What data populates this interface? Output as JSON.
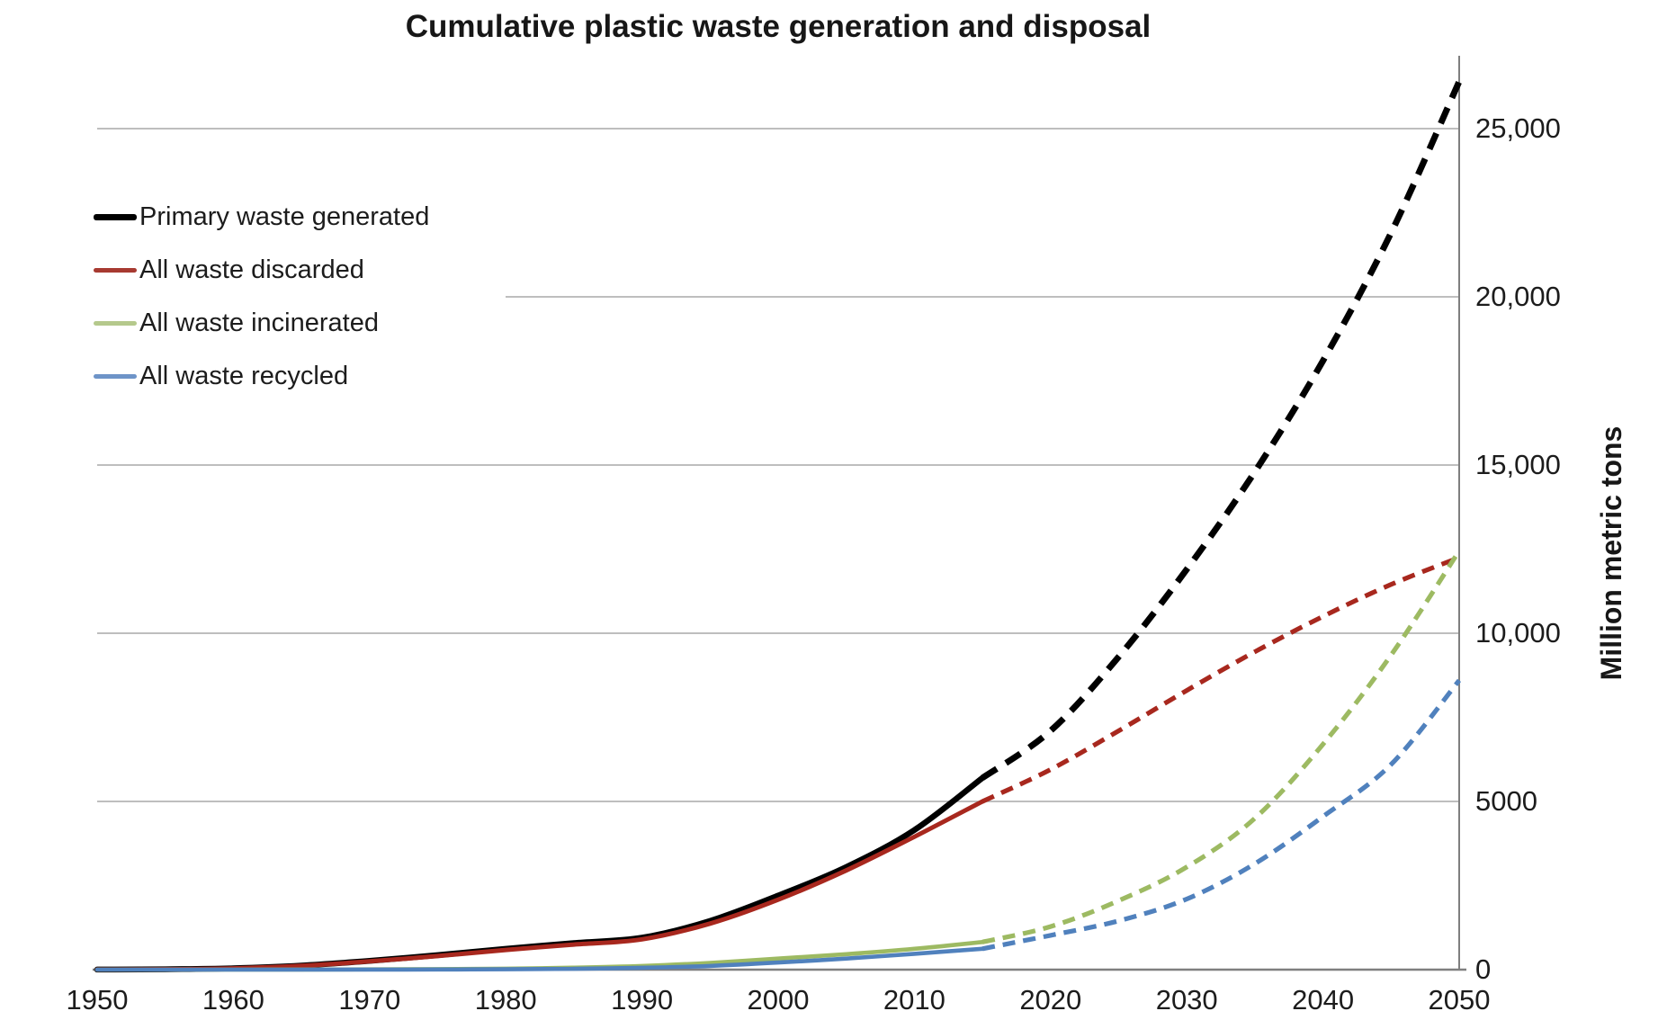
{
  "title": "Cumulative plastic waste generation and disposal",
  "y_axis": {
    "title": "Million metric tons",
    "tick_labels": [
      "25,000",
      "20,000",
      "15,000",
      "10,000",
      "5000",
      "0"
    ],
    "tick_values": [
      25000,
      20000,
      15000,
      10000,
      5000,
      0
    ]
  },
  "x_axis": {
    "tick_labels": [
      "1950",
      "1960",
      "1970",
      "1980",
      "1990",
      "2000",
      "2010",
      "2020",
      "2030",
      "2040",
      "2050"
    ],
    "tick_values": [
      1950,
      1960,
      1970,
      1980,
      1990,
      2000,
      2010,
      2020,
      2030,
      2040,
      2050
    ]
  },
  "legend": {
    "items": [
      {
        "label": "Primary waste generated",
        "marker_color": "#000000"
      },
      {
        "label": "All waste discarded",
        "marker_color": "#a73a31"
      },
      {
        "label": "All waste incinerated",
        "marker_color": "#b5c98c"
      },
      {
        "label": "All waste recycled",
        "marker_color": "#6e94c8"
      }
    ]
  },
  "chart_data": {
    "type": "line",
    "title": "Cumulative plastic waste generation and disposal",
    "xlabel": "",
    "ylabel": "Million metric tons",
    "xlim": [
      1950,
      2050
    ],
    "ylim": [
      0,
      25000
    ],
    "grid": "horizontal",
    "legend_position": "upper-left",
    "units": "million metric tons",
    "projection_split_year": 2015,
    "x": [
      1950,
      1955,
      1960,
      1965,
      1970,
      1975,
      1980,
      1985,
      1990,
      1995,
      2000,
      2005,
      2010,
      2015,
      2020,
      2025,
      2030,
      2035,
      2040,
      2045,
      2050
    ],
    "series": [
      {
        "name": "Primary waste generated",
        "color": "#000000",
        "values": [
          2,
          12,
          40,
          120,
          260,
          430,
          620,
          790,
          950,
          1450,
          2200,
          3050,
          4150,
          5700,
          7100,
          9300,
          11900,
          14800,
          18100,
          21900,
          26400
        ]
      },
      {
        "name": "All waste discarded",
        "color": "#a8281e",
        "values": [
          2,
          11,
          38,
          112,
          245,
          405,
          585,
          745,
          900,
          1370,
          2080,
          2950,
          3950,
          5000,
          5950,
          7100,
          8300,
          9450,
          10500,
          11450,
          12250
        ]
      },
      {
        "name": "All waste incinerated",
        "color": "#9dba62",
        "values": [
          0,
          0,
          1,
          3,
          8,
          16,
          30,
          60,
          110,
          200,
          330,
          460,
          620,
          820,
          1280,
          2050,
          3050,
          4500,
          6700,
          9350,
          12450
        ]
      },
      {
        "name": "All waste recycled",
        "color": "#5081bd",
        "values": [
          0,
          0,
          0,
          1,
          2,
          5,
          12,
          25,
          55,
          110,
          210,
          330,
          470,
          620,
          1020,
          1450,
          2100,
          3150,
          4550,
          6100,
          8600
        ]
      }
    ]
  }
}
